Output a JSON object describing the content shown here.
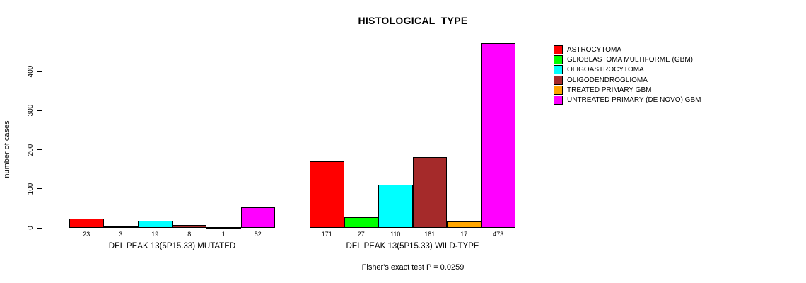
{
  "chart_data": {
    "type": "bar",
    "title": "HISTOLOGICAL_TYPE",
    "ylabel": "number of cases",
    "xlabel": "",
    "yticks": [
      0,
      100,
      200,
      300,
      400
    ],
    "ylim": [
      0,
      473
    ],
    "grid": false,
    "legend_position": "right",
    "groups": [
      "DEL PEAK 13(5P15.33) MUTATED",
      "DEL PEAK 13(5P15.33) WILD-TYPE"
    ],
    "series": [
      {
        "name": "ASTROCYTOMA",
        "color": "#FF0000",
        "values": [
          23,
          171
        ]
      },
      {
        "name": "GLIOBLASTOMA MULTIFORME (GBM)",
        "color": "#00FF00",
        "values": [
          3,
          27
        ]
      },
      {
        "name": "OLIGOASTROCYTOMA",
        "color": "#00FFFF",
        "values": [
          19,
          110
        ]
      },
      {
        "name": "OLIGODENDROGLIOMA",
        "color": "#A52A2A",
        "values": [
          8,
          181
        ]
      },
      {
        "name": "TREATED PRIMARY GBM",
        "color": "#FFA500",
        "values": [
          1,
          17
        ]
      },
      {
        "name": "UNTREATED PRIMARY (DE NOVO) GBM",
        "color": "#FF00FF",
        "values": [
          52,
          473
        ]
      }
    ],
    "footnote": "Fisher's exact test P = 0.0259"
  }
}
